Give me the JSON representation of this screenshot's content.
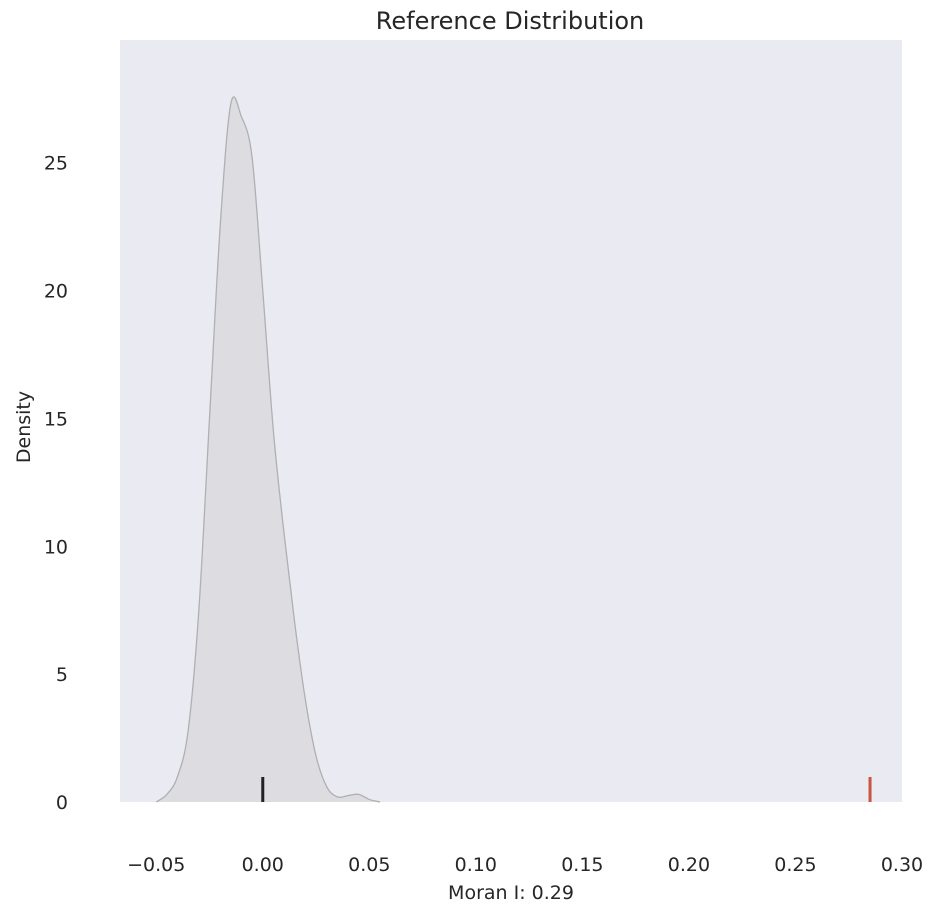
{
  "chart_data": {
    "type": "area",
    "title": "Reference Distribution",
    "xlabel": "Moran I: 0.29",
    "ylabel": "Density",
    "xlim": [
      -0.067,
      0.3
    ],
    "ylim": [
      0,
      29.8
    ],
    "grid": false,
    "x_ticks": [
      "−0.05",
      "0.00",
      "0.05",
      "0.10",
      "0.15",
      "0.20",
      "0.25",
      "0.30"
    ],
    "x_tick_values": [
      -0.05,
      0.0,
      0.05,
      0.1,
      0.15,
      0.2,
      0.25,
      0.3
    ],
    "y_ticks": [
      "0",
      "5",
      "10",
      "15",
      "20",
      "25"
    ],
    "y_tick_values": [
      0,
      5,
      10,
      15,
      20,
      25
    ],
    "series": [
      {
        "type": "kde",
        "color": "#b0b0b0",
        "fill": "#dcdce1",
        "x": [
          -0.05,
          -0.045,
          -0.04,
          -0.035,
          -0.03,
          -0.025,
          -0.02,
          -0.015,
          -0.01,
          -0.005,
          0.0,
          0.005,
          0.01,
          0.015,
          0.02,
          0.025,
          0.03,
          0.035,
          0.04,
          0.045,
          0.05,
          0.055
        ],
        "y": [
          0.0,
          0.3,
          1.0,
          2.8,
          7.5,
          15.0,
          22.5,
          27.3,
          26.8,
          25.2,
          20.0,
          14.5,
          10.5,
          7.0,
          4.0,
          1.8,
          0.6,
          0.2,
          0.25,
          0.3,
          0.1,
          0.0
        ]
      }
    ],
    "markers": [
      {
        "name": "expected value",
        "x": 0.0,
        "height": 1.0,
        "color": "#222222"
      },
      {
        "name": "observed Moran I",
        "x": 0.285,
        "height": 1.0,
        "color": "#c8553d"
      }
    ],
    "colors": {
      "plot_background": "#eaeaf2",
      "text": "#262626"
    }
  }
}
